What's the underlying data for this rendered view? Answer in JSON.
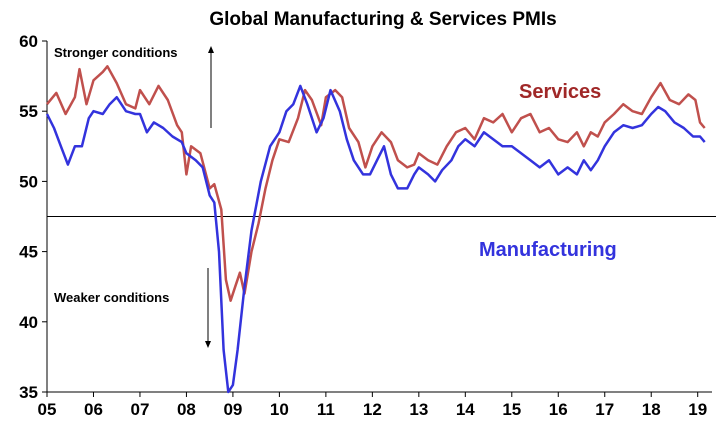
{
  "chart_data": {
    "type": "line",
    "title": "Global Manufacturing & Services PMIs",
    "xlabel": "",
    "ylabel": "",
    "xlim": [
      2005,
      2019.2
    ],
    "ylim": [
      35,
      60
    ],
    "x_ticks": [
      "05",
      "06",
      "07",
      "08",
      "09",
      "10",
      "11",
      "12",
      "13",
      "14",
      "15",
      "16",
      "17",
      "18",
      "19"
    ],
    "y_ticks": [
      "35",
      "40",
      "45",
      "50",
      "55",
      "60"
    ],
    "reference_line": 47.5,
    "grid": false,
    "annotations": {
      "stronger": "Stronger conditions",
      "weaker": "Weaker conditions"
    },
    "series": [
      {
        "name": "Services",
        "color": "#c0504d",
        "points": [
          [
            2005.0,
            55.5
          ],
          [
            2005.2,
            56.3
          ],
          [
            2005.4,
            54.8
          ],
          [
            2005.6,
            56.0
          ],
          [
            2005.7,
            58.0
          ],
          [
            2005.85,
            55.5
          ],
          [
            2006.0,
            57.2
          ],
          [
            2006.2,
            57.8
          ],
          [
            2006.3,
            58.2
          ],
          [
            2006.5,
            57.0
          ],
          [
            2006.7,
            55.5
          ],
          [
            2006.9,
            55.2
          ],
          [
            2007.0,
            56.5
          ],
          [
            2007.2,
            55.5
          ],
          [
            2007.4,
            56.8
          ],
          [
            2007.6,
            55.8
          ],
          [
            2007.8,
            54.0
          ],
          [
            2007.9,
            53.5
          ],
          [
            2008.0,
            50.5
          ],
          [
            2008.1,
            52.5
          ],
          [
            2008.3,
            52.0
          ],
          [
            2008.5,
            49.5
          ],
          [
            2008.6,
            49.8
          ],
          [
            2008.75,
            48.0
          ],
          [
            2008.85,
            43.0
          ],
          [
            2008.95,
            41.5
          ],
          [
            2009.05,
            42.5
          ],
          [
            2009.15,
            43.5
          ],
          [
            2009.25,
            42.0
          ],
          [
            2009.4,
            45.0
          ],
          [
            2009.55,
            47.0
          ],
          [
            2009.7,
            49.5
          ],
          [
            2009.85,
            51.5
          ],
          [
            2010.0,
            53.0
          ],
          [
            2010.2,
            52.8
          ],
          [
            2010.4,
            54.5
          ],
          [
            2010.55,
            56.5
          ],
          [
            2010.7,
            55.8
          ],
          [
            2010.9,
            54.0
          ],
          [
            2011.0,
            56.0
          ],
          [
            2011.2,
            56.5
          ],
          [
            2011.35,
            56.0
          ],
          [
            2011.5,
            53.8
          ],
          [
            2011.7,
            52.8
          ],
          [
            2011.85,
            51.0
          ],
          [
            2012.0,
            52.5
          ],
          [
            2012.2,
            53.5
          ],
          [
            2012.4,
            52.8
          ],
          [
            2012.55,
            51.5
          ],
          [
            2012.75,
            51.0
          ],
          [
            2012.9,
            51.2
          ],
          [
            2013.0,
            52.0
          ],
          [
            2013.2,
            51.5
          ],
          [
            2013.4,
            51.2
          ],
          [
            2013.6,
            52.5
          ],
          [
            2013.8,
            53.5
          ],
          [
            2014.0,
            53.8
          ],
          [
            2014.2,
            53.0
          ],
          [
            2014.4,
            54.5
          ],
          [
            2014.6,
            54.2
          ],
          [
            2014.8,
            54.8
          ],
          [
            2015.0,
            53.5
          ],
          [
            2015.2,
            54.5
          ],
          [
            2015.4,
            54.8
          ],
          [
            2015.6,
            53.5
          ],
          [
            2015.8,
            53.8
          ],
          [
            2016.0,
            53.0
          ],
          [
            2016.2,
            52.8
          ],
          [
            2016.4,
            53.5
          ],
          [
            2016.55,
            52.5
          ],
          [
            2016.7,
            53.5
          ],
          [
            2016.85,
            53.2
          ],
          [
            2017.0,
            54.2
          ],
          [
            2017.2,
            54.8
          ],
          [
            2017.4,
            55.5
          ],
          [
            2017.6,
            55.0
          ],
          [
            2017.8,
            54.8
          ],
          [
            2018.0,
            56.0
          ],
          [
            2018.2,
            57.0
          ],
          [
            2018.4,
            55.8
          ],
          [
            2018.6,
            55.5
          ],
          [
            2018.8,
            56.2
          ],
          [
            2018.95,
            55.8
          ],
          [
            2019.05,
            54.2
          ],
          [
            2019.15,
            53.8
          ]
        ]
      },
      {
        "name": "Manufacturing",
        "color": "#3333dd",
        "points": [
          [
            2005.0,
            54.8
          ],
          [
            2005.15,
            53.8
          ],
          [
            2005.3,
            52.5
          ],
          [
            2005.45,
            51.2
          ],
          [
            2005.6,
            52.5
          ],
          [
            2005.75,
            52.5
          ],
          [
            2005.9,
            54.5
          ],
          [
            2006.0,
            55.0
          ],
          [
            2006.2,
            54.8
          ],
          [
            2006.35,
            55.5
          ],
          [
            2006.5,
            56.0
          ],
          [
            2006.7,
            55.0
          ],
          [
            2006.9,
            54.8
          ],
          [
            2007.0,
            54.8
          ],
          [
            2007.15,
            53.5
          ],
          [
            2007.3,
            54.2
          ],
          [
            2007.5,
            53.8
          ],
          [
            2007.7,
            53.2
          ],
          [
            2007.9,
            52.8
          ],
          [
            2008.0,
            52.0
          ],
          [
            2008.2,
            51.5
          ],
          [
            2008.35,
            51.0
          ],
          [
            2008.5,
            49.0
          ],
          [
            2008.6,
            48.5
          ],
          [
            2008.7,
            45.0
          ],
          [
            2008.8,
            38.0
          ],
          [
            2008.9,
            35.0
          ],
          [
            2009.0,
            35.5
          ],
          [
            2009.1,
            38.0
          ],
          [
            2009.25,
            42.5
          ],
          [
            2009.4,
            46.5
          ],
          [
            2009.6,
            50.0
          ],
          [
            2009.8,
            52.5
          ],
          [
            2010.0,
            53.5
          ],
          [
            2010.15,
            55.0
          ],
          [
            2010.3,
            55.5
          ],
          [
            2010.45,
            56.8
          ],
          [
            2010.6,
            55.5
          ],
          [
            2010.8,
            53.5
          ],
          [
            2010.95,
            54.5
          ],
          [
            2011.1,
            56.5
          ],
          [
            2011.3,
            55.0
          ],
          [
            2011.45,
            53.0
          ],
          [
            2011.6,
            51.5
          ],
          [
            2011.8,
            50.5
          ],
          [
            2011.95,
            50.5
          ],
          [
            2012.1,
            51.5
          ],
          [
            2012.25,
            52.5
          ],
          [
            2012.4,
            50.5
          ],
          [
            2012.55,
            49.5
          ],
          [
            2012.75,
            49.5
          ],
          [
            2012.9,
            50.5
          ],
          [
            2013.0,
            51.0
          ],
          [
            2013.2,
            50.5
          ],
          [
            2013.35,
            50.0
          ],
          [
            2013.5,
            50.8
          ],
          [
            2013.7,
            51.5
          ],
          [
            2013.85,
            52.5
          ],
          [
            2014.0,
            53.0
          ],
          [
            2014.2,
            52.5
          ],
          [
            2014.4,
            53.5
          ],
          [
            2014.6,
            53.0
          ],
          [
            2014.8,
            52.5
          ],
          [
            2015.0,
            52.5
          ],
          [
            2015.2,
            52.0
          ],
          [
            2015.4,
            51.5
          ],
          [
            2015.6,
            51.0
          ],
          [
            2015.8,
            51.5
          ],
          [
            2016.0,
            50.5
          ],
          [
            2016.2,
            51.0
          ],
          [
            2016.4,
            50.5
          ],
          [
            2016.55,
            51.5
          ],
          [
            2016.7,
            50.8
          ],
          [
            2016.85,
            51.5
          ],
          [
            2017.0,
            52.5
          ],
          [
            2017.2,
            53.5
          ],
          [
            2017.4,
            54.0
          ],
          [
            2017.6,
            53.8
          ],
          [
            2017.8,
            54.0
          ],
          [
            2018.0,
            54.8
          ],
          [
            2018.15,
            55.3
          ],
          [
            2018.3,
            55.0
          ],
          [
            2018.5,
            54.2
          ],
          [
            2018.7,
            53.8
          ],
          [
            2018.9,
            53.2
          ],
          [
            2019.05,
            53.2
          ],
          [
            2019.15,
            52.8
          ]
        ]
      }
    ]
  }
}
